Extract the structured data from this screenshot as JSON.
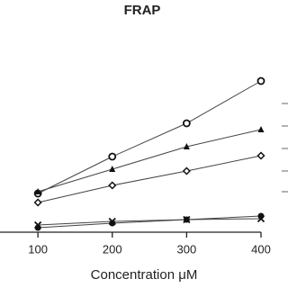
{
  "chart_data": {
    "type": "scatter",
    "title": "FRAP",
    "x_label": "Concentration μM",
    "x": [
      100,
      200,
      300,
      400
    ],
    "xlim": [
      49,
      400
    ],
    "xticks": [
      100,
      200,
      300,
      400
    ],
    "ylim": [
      0,
      200
    ],
    "series": [
      {
        "marker": "circle-open",
        "color": "#111",
        "values": [
          43,
          84,
          121,
          168
        ]
      },
      {
        "marker": "triangle",
        "color": "#111",
        "values": [
          45,
          70,
          95,
          114
        ]
      },
      {
        "marker": "diamond-open",
        "color": "#111",
        "values": [
          33,
          52,
          68,
          85
        ]
      },
      {
        "marker": "cross",
        "color": "#111",
        "values": [
          8,
          12,
          14,
          15
        ]
      },
      {
        "marker": "circle",
        "color": "#111",
        "values": [
          5,
          10,
          14,
          18
        ]
      }
    ]
  }
}
